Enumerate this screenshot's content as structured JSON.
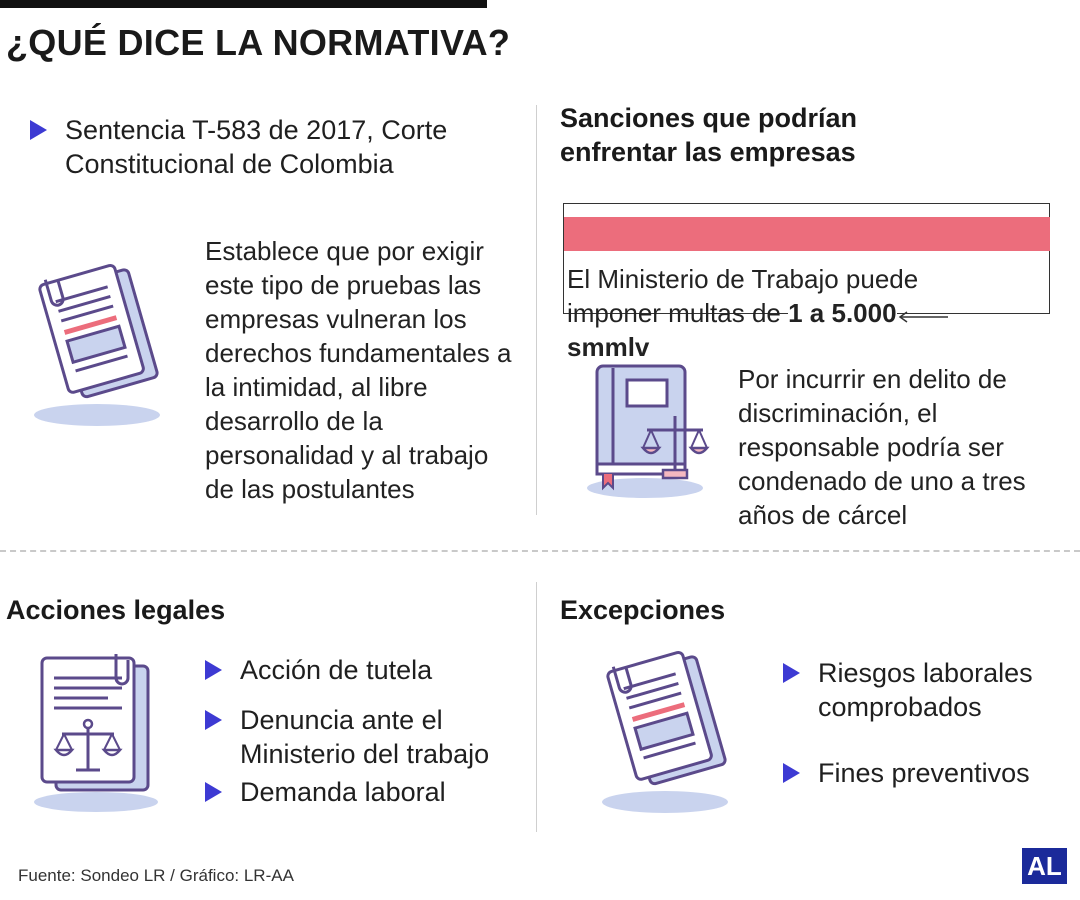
{
  "header": {
    "title": "¿QUÉ DICE LA NORMATIVA?"
  },
  "normativa": {
    "ruling": "Sentencia T-583 de 2017, Corte Constitucional de Colombia",
    "description": "Establece que por exigir este tipo de pruebas las empresas vulneran los derechos fundamentales a la intimidad, al libre desarrollo de la personalidad y al trabajo de las postulantes"
  },
  "sanciones": {
    "heading": "Sanciones que podrían enfrentar las empresas",
    "fine_text": "El Ministerio de Trabajo puede imponer multas de",
    "fine_amount": "1 a 5.000 smmlv",
    "prison_text": "Por incurrir en delito de discriminación, el responsable podría ser condenado de uno a tres años de cárcel"
  },
  "acciones": {
    "heading": "Acciones legales",
    "items": [
      "Acción de tutela",
      "Denuncia ante el Ministerio del trabajo",
      "Demanda laboral"
    ]
  },
  "excepciones": {
    "heading": "Excepciones",
    "items": [
      "Riesgos laborales comprobados",
      "Fines preventivos"
    ]
  },
  "footer": {
    "source": "Fuente: Sondeo LR / Gráfico: LR-AA",
    "logo": "AL"
  },
  "colors": {
    "accent_blue": "#3d3ad3",
    "fine_bar": "#ec6d7c",
    "icon_purple": "#5b4a8b",
    "icon_fill": "#c9d3ee",
    "logo_blue": "#1b2a9a"
  },
  "icons": [
    "document-clip-icon",
    "law-book-scales-icon",
    "document-scales-icon",
    "document-clip-icon"
  ]
}
